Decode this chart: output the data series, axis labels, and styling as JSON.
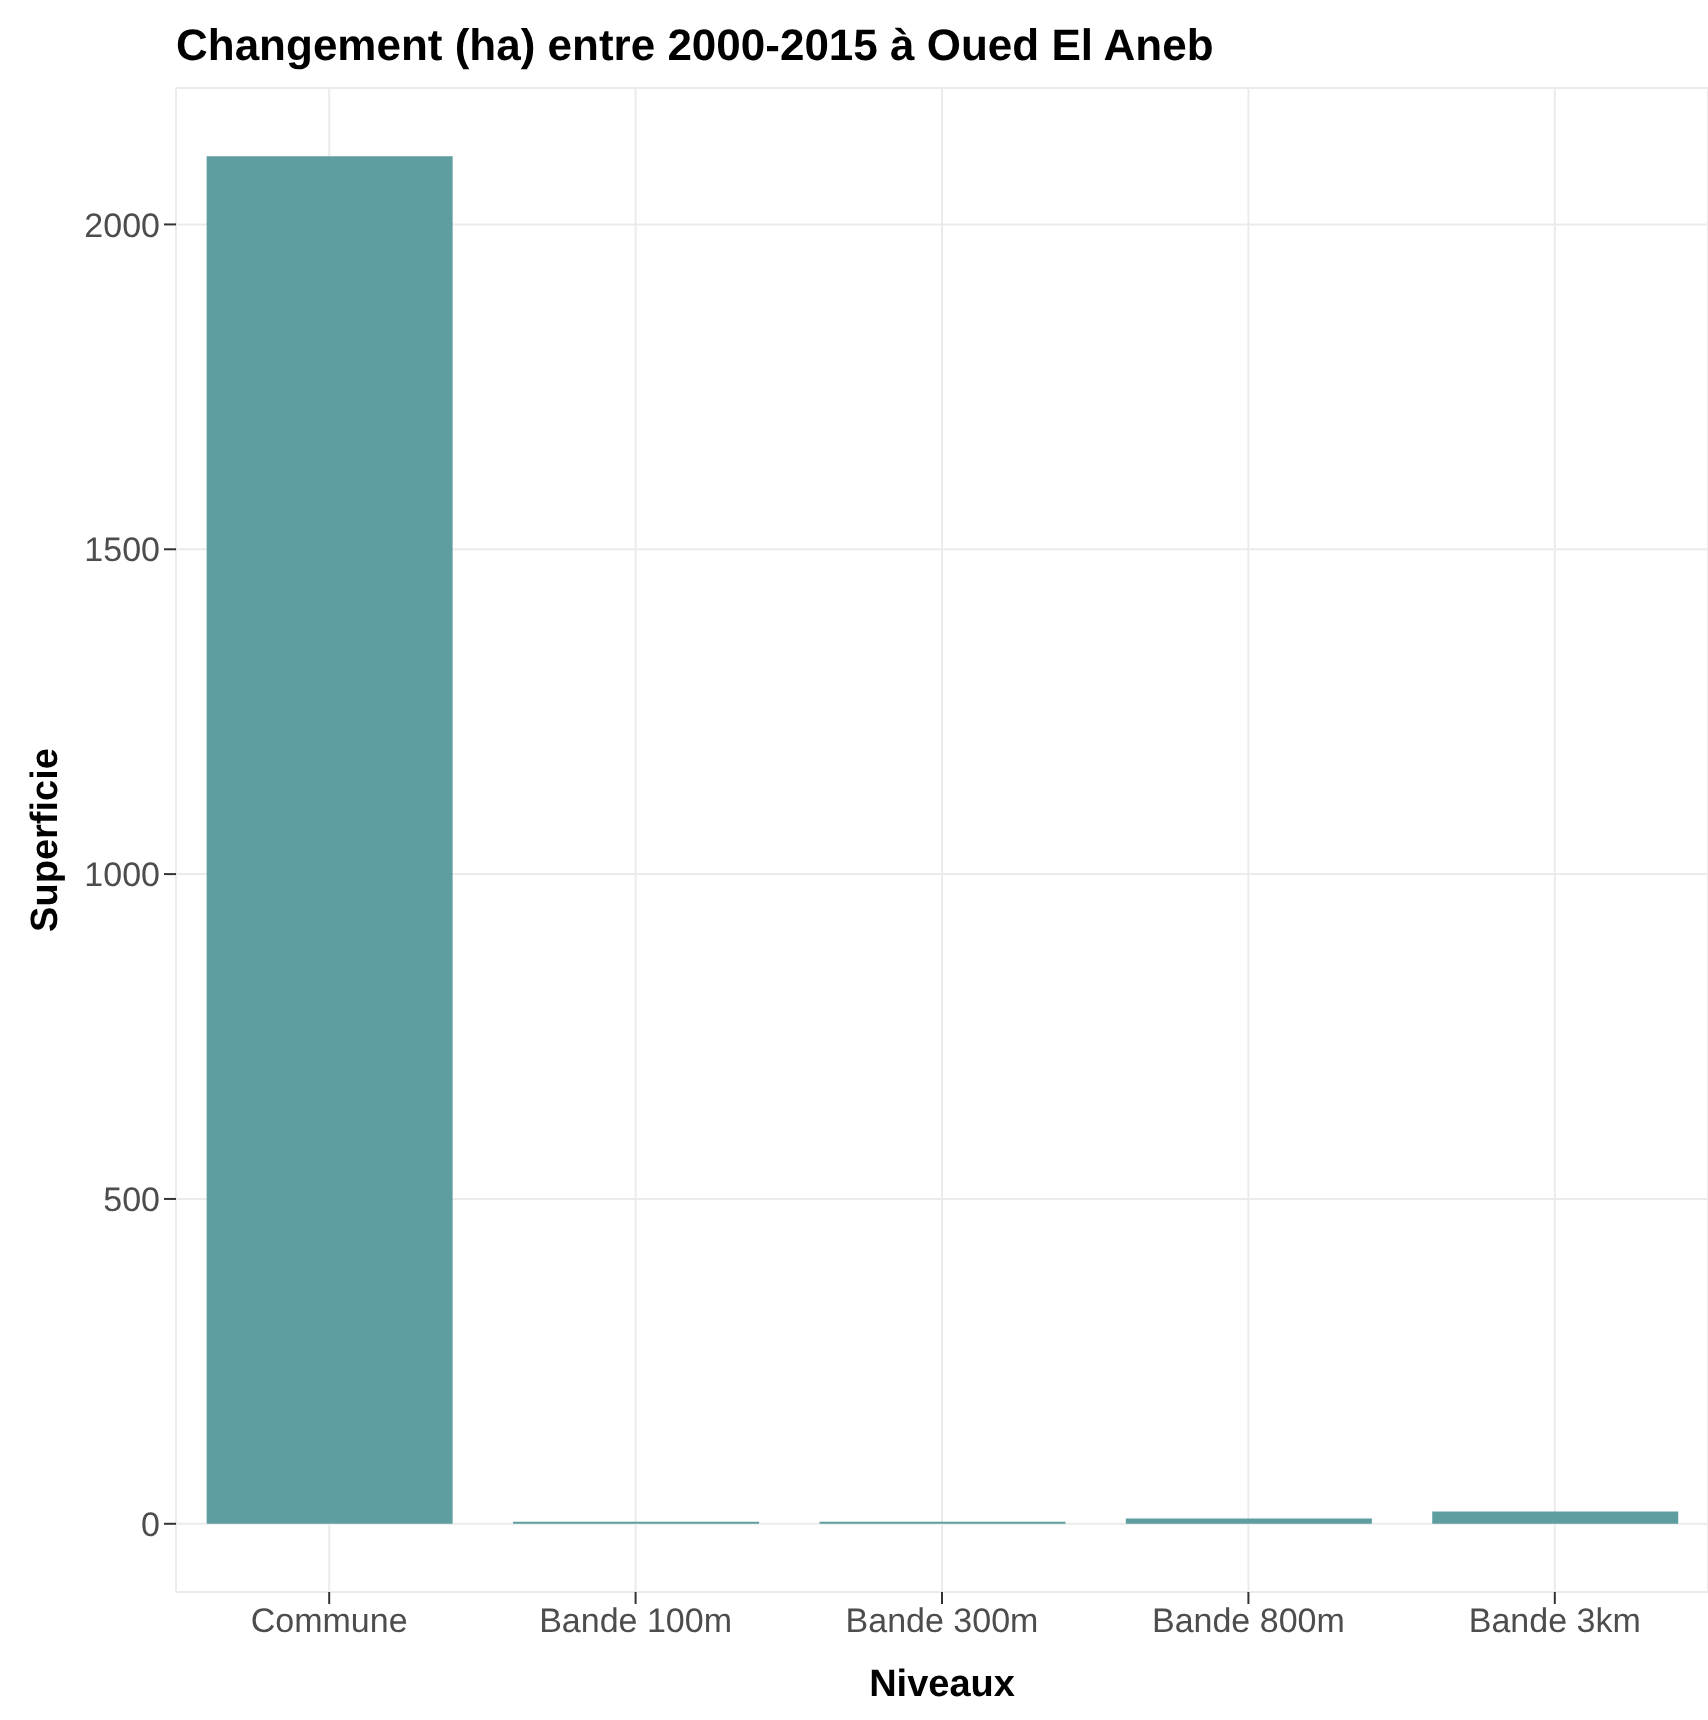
{
  "chart_data": {
    "type": "bar",
    "title": "Changement (ha) entre 2000-2015 à Oued El Aneb",
    "xlabel": "Niveaux",
    "ylabel": "Superficie",
    "categories": [
      "Commune",
      "Bande 100m",
      "Bande 300m",
      "Bande 800m",
      "Bande 3km"
    ],
    "values": [
      2105,
      3,
      3,
      8,
      19
    ],
    "color": "#5f9ea0",
    "ylim": [
      -105,
      2210
    ],
    "yticks": [
      0,
      500,
      1000,
      1500,
      2000
    ],
    "grid": true
  }
}
